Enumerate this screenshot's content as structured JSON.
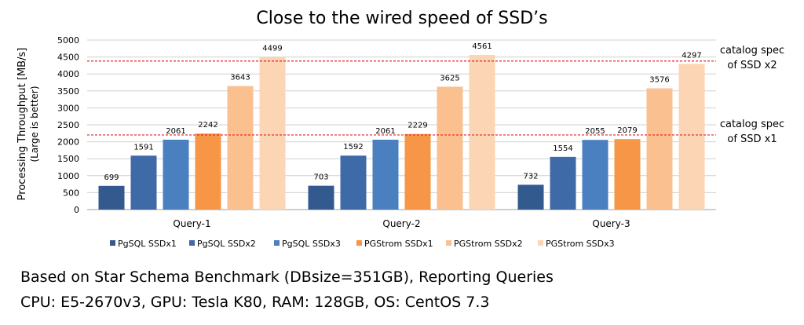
{
  "chart_data": {
    "type": "bar",
    "title": "Close to the wired speed of SSD’s",
    "ylabel": "Processing Throughput [MB/s]",
    "ylabel_sub": "(Large is better)",
    "xlabel": "",
    "ylim": [
      0,
      5000
    ],
    "yticks": [
      0,
      500,
      1000,
      1500,
      2000,
      2500,
      3000,
      3500,
      4000,
      4500,
      5000
    ],
    "grid": true,
    "legend_position": "bottom",
    "categories": [
      "Query-1",
      "Query-2",
      "Query-3"
    ],
    "series": [
      {
        "name": "PgSQL SSDx1",
        "color": "#335a8f",
        "values": [
          699,
          703,
          732
        ]
      },
      {
        "name": "PgSQL SSDx2",
        "color": "#3f6aa8",
        "values": [
          1591,
          1592,
          1554
        ]
      },
      {
        "name": "PgSQL SSDx3",
        "color": "#4a7fc0",
        "values": [
          2061,
          2061,
          2055
        ]
      },
      {
        "name": "PGStrom SSDx1",
        "color": "#f79646",
        "values": [
          2242,
          2229,
          2079
        ]
      },
      {
        "name": "PGStrom SSDx2",
        "color": "#fac090",
        "values": [
          3643,
          3625,
          3576
        ]
      },
      {
        "name": "PGStrom SSDx3",
        "color": "#fcd5b4",
        "values": [
          4499,
          4561,
          4297
        ]
      }
    ],
    "reference_lines": [
      {
        "value": 4380,
        "label_lines": [
          "catalog spec",
          "of SSD x2"
        ],
        "color": "#e02020"
      },
      {
        "value": 2200,
        "label_lines": [
          "catalog spec",
          "of SSD x1"
        ],
        "color": "#e02020"
      }
    ]
  },
  "notes": {
    "line1": "Based on Star Schema Benchmark (DBsize=351GB), Reporting Queries",
    "line2": "CPU: E5-2670v3, GPU: Tesla K80, RAM: 128GB, OS: CentOS 7.3"
  }
}
